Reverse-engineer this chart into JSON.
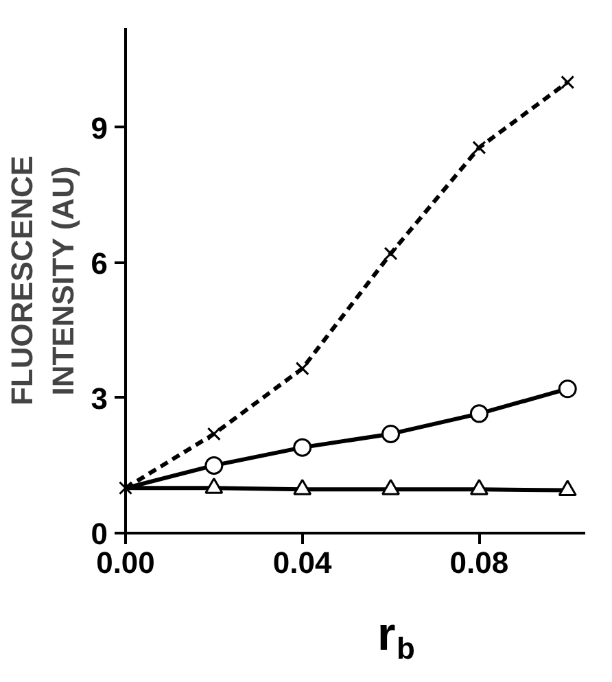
{
  "chart_data": {
    "type": "line",
    "xlabel": "r$_{b}$",
    "ylabel": "FLUORESCENCE\nINTENSITY (AU)",
    "x": [
      0,
      0.02,
      0.04,
      0.06,
      0.08,
      0.1
    ],
    "xlim": [
      0,
      0.104
    ],
    "xticks": [
      {
        "value": 0,
        "label": "0.00"
      },
      {
        "value": 0.04,
        "label": "0.04"
      },
      {
        "value": 0.08,
        "label": "0.08"
      }
    ],
    "ylim": [
      0,
      11.2
    ],
    "yticks": [
      0,
      3,
      6,
      9
    ],
    "grid": false,
    "series": [
      {
        "color": "#000000",
        "marker": "cross",
        "line_style": "dashed",
        "values": [
          1.0,
          2.2,
          3.65,
          6.2,
          8.55,
          10.0
        ]
      },
      {
        "color": "#000000",
        "marker": "circle",
        "line_style": "solid",
        "values": [
          1.0,
          1.5,
          1.9,
          2.2,
          2.65,
          3.2
        ]
      },
      {
        "color": "#000000",
        "marker": "triangle",
        "line_style": "solid",
        "values": [
          1.0,
          1.0,
          0.97,
          0.97,
          0.97,
          0.95
        ]
      }
    ]
  }
}
